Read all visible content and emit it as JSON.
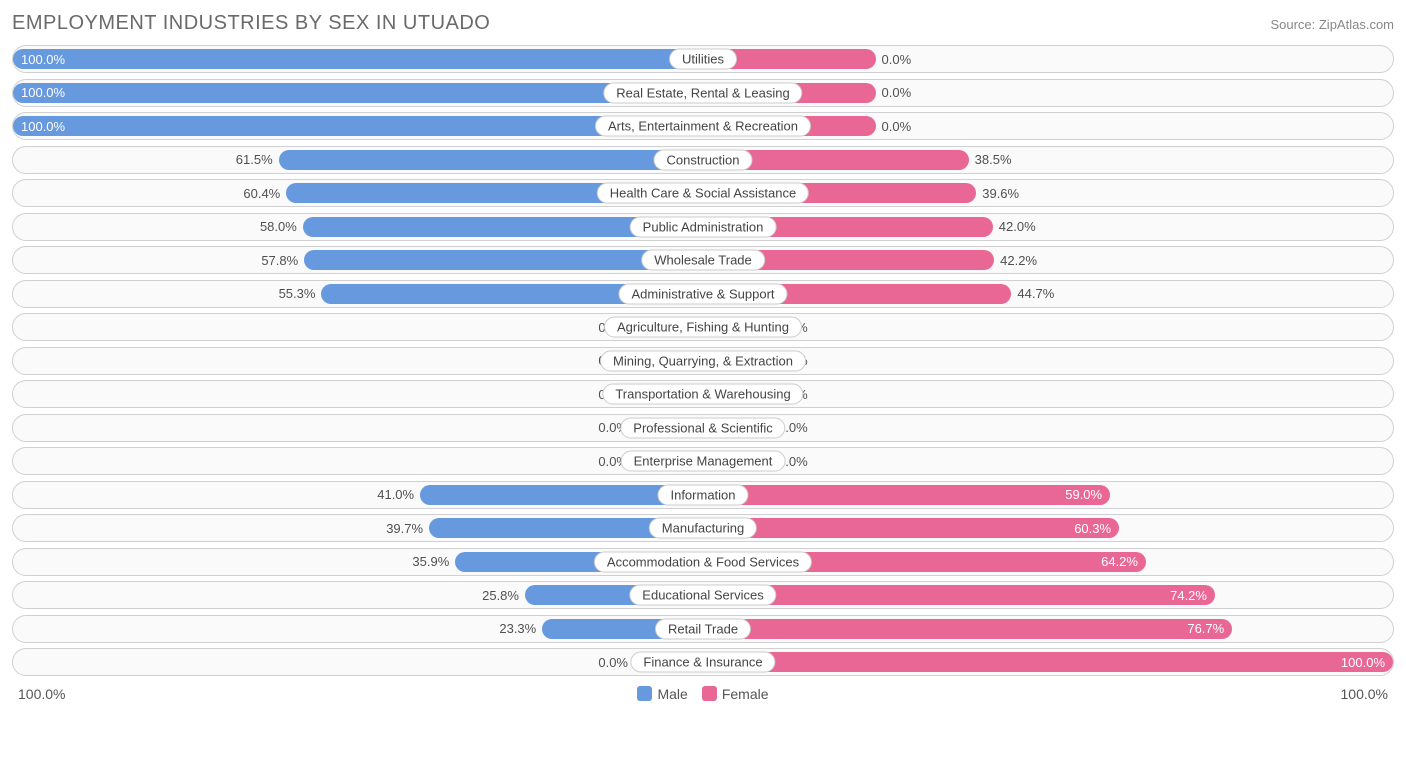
{
  "title": "EMPLOYMENT INDUSTRIES BY SEX IN UTUADO",
  "source": "Source: ZipAtlas.com",
  "colors": {
    "male": "#6699dd",
    "female": "#e96794",
    "row_border": "#d0d0d0",
    "row_bg": "#fafafa",
    "text_dark": "#505050",
    "text_light": "#ffffff",
    "title_color": "#6a6a6a",
    "source_color": "#888888"
  },
  "axis": {
    "left_label": "100.0%",
    "right_label": "100.0%"
  },
  "legend": {
    "male": "Male",
    "female": "Female"
  },
  "min_bar_pct": 10,
  "rows": [
    {
      "label": "Utilities",
      "male": 100.0,
      "female": 0.0,
      "male_text": "100.0%",
      "female_text": "0.0%",
      "female_bar_override": 25
    },
    {
      "label": "Real Estate, Rental & Leasing",
      "male": 100.0,
      "female": 0.0,
      "male_text": "100.0%",
      "female_text": "0.0%",
      "female_bar_override": 25
    },
    {
      "label": "Arts, Entertainment & Recreation",
      "male": 100.0,
      "female": 0.0,
      "male_text": "100.0%",
      "female_text": "0.0%",
      "female_bar_override": 25
    },
    {
      "label": "Construction",
      "male": 61.5,
      "female": 38.5,
      "male_text": "61.5%",
      "female_text": "38.5%"
    },
    {
      "label": "Health Care & Social Assistance",
      "male": 60.4,
      "female": 39.6,
      "male_text": "60.4%",
      "female_text": "39.6%"
    },
    {
      "label": "Public Administration",
      "male": 58.0,
      "female": 42.0,
      "male_text": "58.0%",
      "female_text": "42.0%"
    },
    {
      "label": "Wholesale Trade",
      "male": 57.8,
      "female": 42.2,
      "male_text": "57.8%",
      "female_text": "42.2%"
    },
    {
      "label": "Administrative & Support",
      "male": 55.3,
      "female": 44.7,
      "male_text": "55.3%",
      "female_text": "44.7%"
    },
    {
      "label": "Agriculture, Fishing & Hunting",
      "male": 0.0,
      "female": 0.0,
      "male_text": "0.0%",
      "female_text": "0.0%"
    },
    {
      "label": "Mining, Quarrying, & Extraction",
      "male": 0.0,
      "female": 0.0,
      "male_text": "0.0%",
      "female_text": "0.0%"
    },
    {
      "label": "Transportation & Warehousing",
      "male": 0.0,
      "female": 0.0,
      "male_text": "0.0%",
      "female_text": "0.0%"
    },
    {
      "label": "Professional & Scientific",
      "male": 0.0,
      "female": 0.0,
      "male_text": "0.0%",
      "female_text": "0.0%"
    },
    {
      "label": "Enterprise Management",
      "male": 0.0,
      "female": 0.0,
      "male_text": "0.0%",
      "female_text": "0.0%"
    },
    {
      "label": "Information",
      "male": 41.0,
      "female": 59.0,
      "male_text": "41.0%",
      "female_text": "59.0%"
    },
    {
      "label": "Manufacturing",
      "male": 39.7,
      "female": 60.3,
      "male_text": "39.7%",
      "female_text": "60.3%"
    },
    {
      "label": "Accommodation & Food Services",
      "male": 35.9,
      "female": 64.2,
      "male_text": "35.9%",
      "female_text": "64.2%"
    },
    {
      "label": "Educational Services",
      "male": 25.8,
      "female": 74.2,
      "male_text": "25.8%",
      "female_text": "74.2%"
    },
    {
      "label": "Retail Trade",
      "male": 23.3,
      "female": 76.7,
      "male_text": "23.3%",
      "female_text": "76.7%"
    },
    {
      "label": "Finance & Insurance",
      "male": 0.0,
      "female": 100.0,
      "male_text": "0.0%",
      "female_text": "100.0%"
    }
  ]
}
